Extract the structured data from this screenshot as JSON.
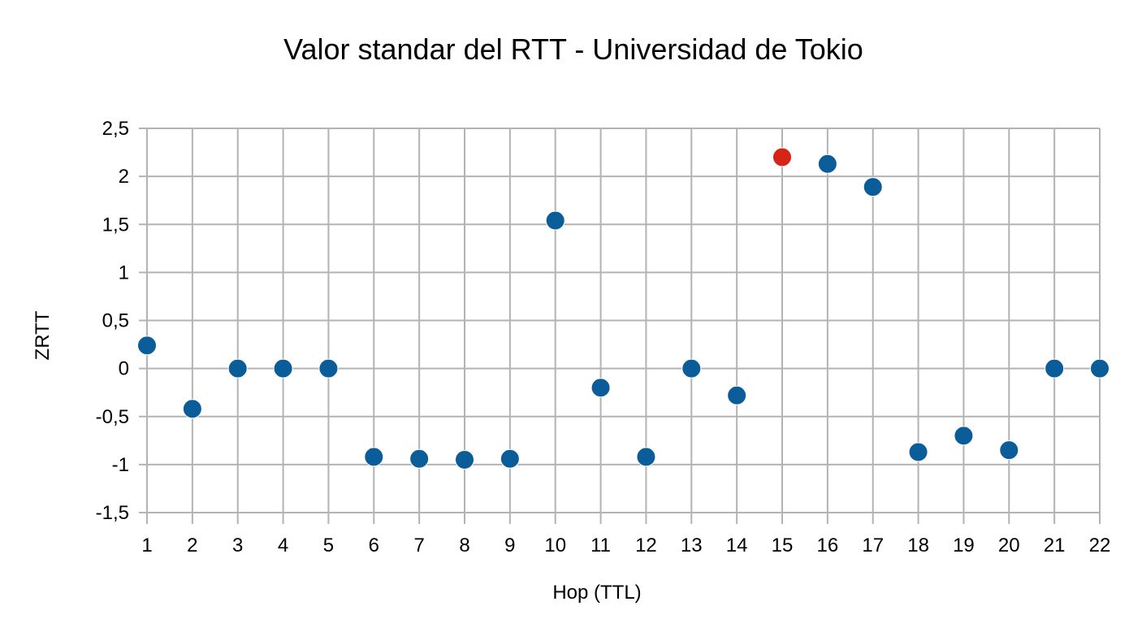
{
  "chart_data": {
    "type": "scatter",
    "title": "Valor standar del RTT - Universidad de Tokio",
    "xlabel": "Hop (TTL)",
    "ylabel": "ZRTT",
    "xlim": [
      1,
      22
    ],
    "ylim": [
      -1.5,
      2.5
    ],
    "x_ticks": [
      "1",
      "2",
      "3",
      "4",
      "5",
      "6",
      "7",
      "8",
      "9",
      "10",
      "11",
      "12",
      "13",
      "14",
      "15",
      "16",
      "17",
      "18",
      "19",
      "20",
      "21",
      "22"
    ],
    "y_ticks": [
      "2,5",
      "2",
      "1,5",
      "1",
      "0,5",
      "0",
      "-0,5",
      "-1",
      "-1,5"
    ],
    "y_tick_values": [
      2.5,
      2,
      1.5,
      1,
      0.5,
      0,
      -0.5,
      -1,
      -1.5
    ],
    "grid": true,
    "legend": "none",
    "colors": {
      "default": "#0b5d9a",
      "highlight": "#d62418"
    },
    "points": [
      {
        "x": 1,
        "y": 0.24
      },
      {
        "x": 2,
        "y": -0.42
      },
      {
        "x": 3,
        "y": 0.0
      },
      {
        "x": 4,
        "y": 0.0
      },
      {
        "x": 5,
        "y": 0.0
      },
      {
        "x": 6,
        "y": -0.92
      },
      {
        "x": 7,
        "y": -0.94
      },
      {
        "x": 8,
        "y": -0.95
      },
      {
        "x": 9,
        "y": -0.94
      },
      {
        "x": 10,
        "y": 1.54
      },
      {
        "x": 11,
        "y": -0.2
      },
      {
        "x": 12,
        "y": -0.92
      },
      {
        "x": 13,
        "y": 0.0
      },
      {
        "x": 14,
        "y": -0.28
      },
      {
        "x": 15,
        "y": 2.2,
        "highlight": true
      },
      {
        "x": 16,
        "y": 2.13
      },
      {
        "x": 17,
        "y": 1.89
      },
      {
        "x": 18,
        "y": -0.87
      },
      {
        "x": 19,
        "y": -0.7
      },
      {
        "x": 20,
        "y": -0.85
      },
      {
        "x": 21,
        "y": 0.0
      },
      {
        "x": 22,
        "y": 0.0
      }
    ]
  }
}
